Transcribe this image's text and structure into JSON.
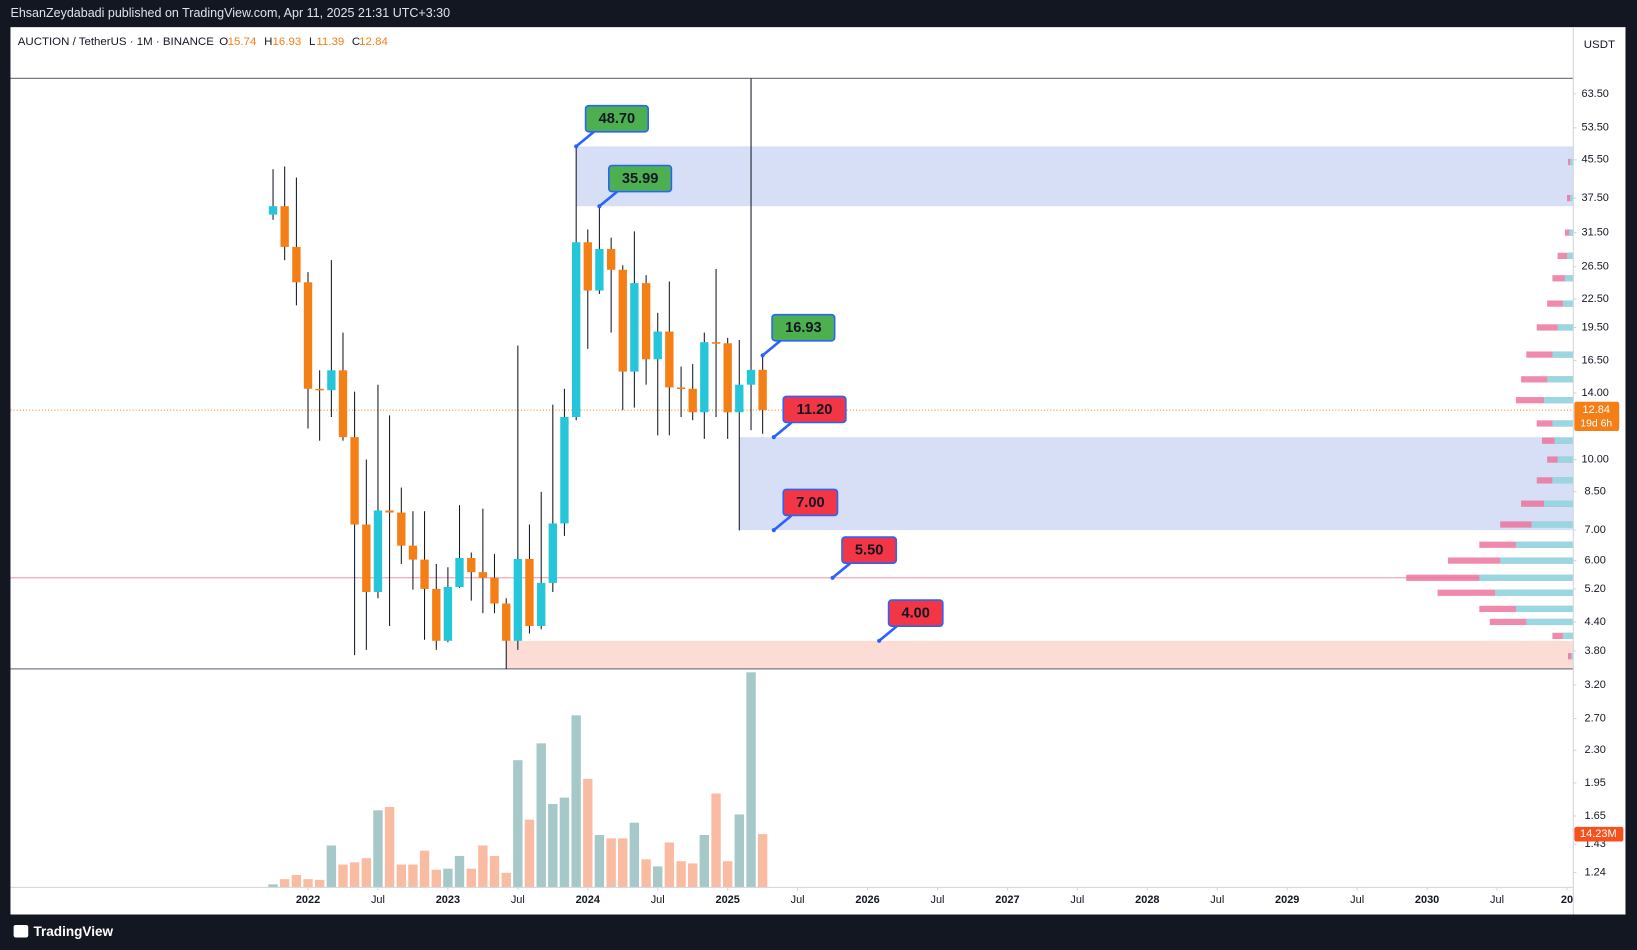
{
  "header": "EhsanZeydabadi published on TradingView.com, Apr 11, 2025 21:31 UTC+3:30",
  "footer": "TradingView",
  "chart_data": {
    "type": "candlestick",
    "symbol": "AUCTION / TetherUS · 1M · BINANCE",
    "ohlc_labels": [
      "O",
      "H",
      "L",
      "C"
    ],
    "currency": "USDT",
    "countdown": "19d 6h",
    "up_color": "#26c6da",
    "down_color": "#f57f17",
    "volume_up_color": "#a7c8c9",
    "volume_down_color": "#f9bca3",
    "log_scale": true,
    "grid": false,
    "x": [
      2021.75,
      2021.833,
      2021.917,
      2022.0,
      2022.083,
      2022.167,
      2022.25,
      2022.333,
      2022.417,
      2022.5,
      2022.583,
      2022.667,
      2022.75,
      2022.833,
      2022.917,
      2023.0,
      2023.083,
      2023.167,
      2023.25,
      2023.333,
      2023.417,
      2023.5,
      2023.583,
      2023.667,
      2023.75,
      2023.833,
      2023.917,
      2024.0,
      2024.083,
      2024.167,
      2024.25,
      2024.333,
      2024.417,
      2024.5,
      2024.583,
      2024.667,
      2024.75,
      2024.833,
      2024.917,
      2025.0,
      2025.083,
      2025.167,
      2025.25
    ],
    "open": [
      34.5,
      36.0,
      29.3,
      24.5,
      14.3,
      14.2,
      15.7,
      11.2,
      7.2,
      5.12,
      7.73,
      7.65,
      6.47,
      6.03,
      5.2,
      4.0,
      5.25,
      6.08,
      5.66,
      5.5,
      4.83,
      4.0,
      6.05,
      4.31,
      5.36,
      7.24,
      12.4,
      30.0,
      23.5,
      29.0,
      26.1,
      15.6,
      24.4,
      16.6,
      19.1,
      14.4,
      14.3,
      12.7,
      18.1,
      18.0,
      12.7,
      14.6,
      15.74
    ],
    "high": [
      43.4,
      44.0,
      41.6,
      25.8,
      15.7,
      27.4,
      19.0,
      14.1,
      10.0,
      14.6,
      12.5,
      8.68,
      7.7,
      7.7,
      5.9,
      5.8,
      7.94,
      6.25,
      7.8,
      6.2,
      4.96,
      17.8,
      7.2,
      8.5,
      13.2,
      14.3,
      48.7,
      32.0,
      35.99,
      30.7,
      26.7,
      31.7,
      25.4,
      21.0,
      24.6,
      16.0,
      16.2,
      19.0,
      26.2,
      18.5,
      18.3,
      68.7,
      16.93
    ],
    "low": [
      33.6,
      27.4,
      21.8,
      11.7,
      11.0,
      12.4,
      11.0,
      3.72,
      3.82,
      4.96,
      4.31,
      5.9,
      5.18,
      4.02,
      3.82,
      3.97,
      5.23,
      4.9,
      4.6,
      4.6,
      3.47,
      3.82,
      4.15,
      4.24,
      5.12,
      6.8,
      12.2,
      17.5,
      23.1,
      19.0,
      12.84,
      13.0,
      14.6,
      11.3,
      11.3,
      12.4,
      12.2,
      11.1,
      12.4,
      11.1,
      6.99,
      11.6,
      11.39
    ],
    "close": [
      36.0,
      29.3,
      24.5,
      14.3,
      14.2,
      15.7,
      11.2,
      7.2,
      5.12,
      7.73,
      7.65,
      6.47,
      6.03,
      5.2,
      4.0,
      5.25,
      6.08,
      5.66,
      5.5,
      4.83,
      4.0,
      6.05,
      4.31,
      5.36,
      7.24,
      12.4,
      30.0,
      23.5,
      29.0,
      26.1,
      15.6,
      24.4,
      16.6,
      19.1,
      14.4,
      14.3,
      12.7,
      18.1,
      18.0,
      12.7,
      14.6,
      15.74,
      12.84
    ],
    "volume": {
      "values": [
        0.8,
        2.2,
        3.3,
        2.2,
        2.0,
        11.2,
        6.1,
        6.7,
        7.8,
        20.6,
        21.5,
        6.1,
        6.1,
        9.8,
        4.7,
        5.0,
        8.4,
        5.0,
        11.2,
        8.4,
        3.9,
        34.0,
        18.1,
        38.5,
        22.3,
        24.0,
        46.0,
        29.0,
        14.0,
        13.1,
        13.1,
        17.3,
        7.5,
        5.6,
        12.0,
        7.0,
        6.4,
        14.0,
        25.1,
        7.0,
        19.5,
        57.5,
        14.23
      ],
      "value_labels": [
        null,
        null,
        null,
        null,
        null,
        null,
        null,
        null,
        null,
        null,
        null,
        null,
        null,
        null,
        null,
        null,
        null,
        null,
        null,
        null,
        null,
        null,
        null,
        null,
        null,
        null,
        null,
        null,
        null,
        null,
        null,
        null,
        null,
        null,
        null,
        null,
        null,
        null,
        null,
        null,
        null,
        null,
        "14.23M"
      ]
    },
    "volume_ylim": [
      0,
      230
    ],
    "xlim": [
      2019.873,
      2031.045
    ],
    "xticks": [
      2022,
      {
        "value": 2022.5,
        "label": "Jul"
      },
      2023,
      {
        "value": 2023.5,
        "label": "Jul"
      },
      2024,
      {
        "value": 2024.5,
        "label": "Jul"
      },
      2025,
      {
        "value": 2025.5,
        "label": "Jul"
      },
      2026,
      {
        "value": 2026.5,
        "label": "Jul"
      },
      2027,
      {
        "value": 2027.5,
        "label": "Jul"
      },
      2028,
      {
        "value": 2028.5,
        "label": "Jul"
      },
      2029,
      {
        "value": 2029.5,
        "label": "Jul"
      },
      2030,
      {
        "value": 2030.5,
        "label": "Jul"
      },
      {
        "value": 2031,
        "label": "20"
      }
    ],
    "ylim": [
      1.15,
      89
    ],
    "yticks": [
      {
        "value": 63.5,
        "label": "63.50"
      },
      {
        "value": 53.5,
        "label": "53.50"
      },
      {
        "value": 45.5,
        "label": "45.50"
      },
      {
        "value": 37.5,
        "label": "37.50"
      },
      {
        "value": 31.5,
        "label": "31.50"
      },
      {
        "value": 26.5,
        "label": "26.50"
      },
      {
        "value": 22.5,
        "label": "22.50"
      },
      {
        "value": 19.5,
        "label": "19.50"
      },
      {
        "value": 16.5,
        "label": "16.50"
      },
      {
        "value": 14,
        "label": "14.00"
      },
      {
        "value": 10,
        "label": "10.00"
      },
      {
        "value": 8.5,
        "label": "8.50"
      },
      {
        "value": 7,
        "label": "7.00"
      },
      {
        "value": 6,
        "label": "6.00"
      },
      {
        "value": 5.2,
        "label": "5.20"
      },
      {
        "value": 4.4,
        "label": "4.40"
      },
      {
        "value": 3.8,
        "label": "3.80"
      },
      {
        "value": 3.2,
        "label": "3.20"
      },
      {
        "value": 2.7,
        "label": "2.70"
      },
      {
        "value": 2.3,
        "label": "2.30"
      },
      {
        "value": 1.95,
        "label": "1.95"
      },
      {
        "value": 1.65,
        "label": "1.65"
      },
      {
        "value": 1.43,
        "label": "1.43"
      },
      {
        "value": 1.24,
        "label": "1.24"
      }
    ],
    "zones": [
      {
        "low": 35.99,
        "high": 48.7,
        "from": 2023.917,
        "color": "#d3dbf5"
      },
      {
        "low": 7.0,
        "high": 11.2,
        "from": 2025.083,
        "color": "#d3dbf5"
      },
      {
        "low": 3.47,
        "high": 4.0,
        "from": 2023.417,
        "color": "#fcd9d2"
      }
    ],
    "levels": [
      {
        "value": 68.7,
        "color": "#787b86"
      },
      {
        "value": 3.47,
        "color": "#787b86"
      },
      {
        "value": 5.5,
        "color": "#f4a6b8"
      }
    ],
    "annotations": [
      {
        "value": 48.7,
        "label": "48.70",
        "x": 2023.917,
        "color": "#4caf50"
      },
      {
        "value": 35.99,
        "label": "35.99",
        "x": 2024.083,
        "color": "#4caf50"
      },
      {
        "value": 16.93,
        "label": "16.93",
        "x": 2025.25,
        "color": "#4caf50"
      },
      {
        "value": 11.2,
        "label": "11.20",
        "x": 2025.33,
        "color": "#f23645"
      },
      {
        "value": 7.0,
        "label": "7.00",
        "x": 2025.33,
        "color": "#f23645"
      },
      {
        "value": 5.5,
        "label": "5.50",
        "x": 2025.75,
        "color": "#f23645"
      },
      {
        "value": 4.0,
        "label": "4.00",
        "x": 2026.083,
        "color": "#f23645"
      }
    ],
    "volume_profile": {
      "up_color": "#8fdfe8",
      "down_color": "#ec6d97",
      "prices": [
        45,
        37.5,
        31.5,
        28,
        25,
        22,
        19.5,
        17,
        15,
        13.5,
        12,
        11,
        10,
        9,
        8,
        7.2,
        6.5,
        6,
        5.5,
        5.1,
        4.7,
        4.4,
        4.1,
        3.7
      ],
      "total": [
        5,
        6,
        8,
        15,
        20,
        25,
        35,
        45,
        50,
        55,
        35,
        30,
        25,
        35,
        50,
        70,
        90,
        120,
        160,
        130,
        90,
        80,
        20,
        5
      ],
      "up": [
        3,
        3,
        4,
        6,
        8,
        10,
        15,
        20,
        25,
        28,
        20,
        18,
        15,
        20,
        28,
        40,
        55,
        70,
        90,
        75,
        55,
        45,
        10,
        2
      ]
    }
  }
}
